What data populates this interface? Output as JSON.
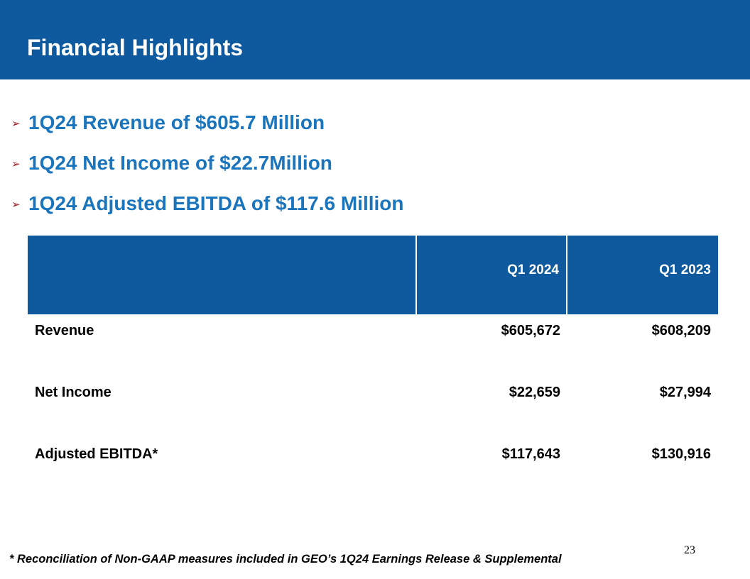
{
  "title": "Financial Highlights",
  "bullets": [
    {
      "arrow": "➢",
      "text": "1Q24 Revenue of $605.7 Million"
    },
    {
      "arrow": "➢",
      "text": "1Q24 Net Income of $22.7Million"
    },
    {
      "arrow": "➢",
      "text": "1Q24 Adjusted EBITDA of $117.6 Million"
    }
  ],
  "table": {
    "headers": [
      "",
      "Q1 2024",
      "Q1 2023"
    ],
    "rows": [
      {
        "label": "Revenue",
        "q1_2024": "$605,672",
        "q1_2023": "$608,209"
      },
      {
        "label": "Net Income",
        "q1_2024": "$22,659",
        "q1_2023": "$27,994"
      },
      {
        "label": "Adjusted EBITDA*",
        "q1_2024": "$117,643",
        "q1_2023": "$130,916"
      }
    ]
  },
  "page_number": "23",
  "footnote": "* Reconciliation of Non-GAAP measures included in GEO’s 1Q24 Earnings Release & Supplemental",
  "colors": {
    "brand_blue": "#0f5a9e",
    "bullet_text": "#1b75bc",
    "bullet_arrow": "#9c1c24"
  }
}
